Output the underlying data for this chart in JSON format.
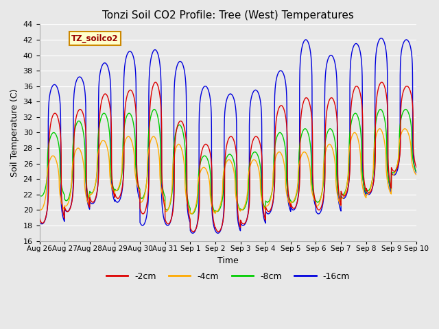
{
  "title": "Tonzi Soil CO2 Profile: Tree (West) Temperatures",
  "xlabel": "Time",
  "ylabel": "Soil Temperature (C)",
  "ylim": [
    16,
    44
  ],
  "yticks": [
    16,
    18,
    20,
    22,
    24,
    26,
    28,
    30,
    32,
    34,
    36,
    38,
    40,
    42,
    44
  ],
  "legend_label": "TZ_soilco2",
  "series_labels": [
    "-2cm",
    "-4cm",
    "-8cm",
    "-16cm"
  ],
  "series_colors": [
    "#dd0000",
    "#ffaa00",
    "#00cc00",
    "#0000dd"
  ],
  "background_color": "#e8e8e8",
  "xtick_labels": [
    "Aug 26",
    "Aug 27",
    "Aug 28",
    "Aug 29",
    "Aug 30",
    "Aug 31",
    "Sep 1",
    "Sep 2",
    "Sep 3",
    "Sep 4",
    "Sep 5",
    "Sep 6",
    "Sep 7",
    "Sep 8",
    "Sep 9",
    "Sep 10"
  ],
  "peaks_16cm": [
    36.2,
    37.2,
    39.0,
    40.5,
    40.7,
    39.2,
    36.0,
    35.0,
    35.5,
    38.0,
    42.0,
    40.0,
    41.5,
    42.2,
    42.0
  ],
  "troughs_16cm": [
    18.2,
    19.8,
    20.8,
    21.0,
    18.0,
    18.0,
    17.0,
    17.0,
    18.0,
    19.5,
    20.0,
    19.5,
    21.5,
    22.0,
    24.5
  ],
  "peaks_2cm": [
    32.5,
    33.0,
    35.0,
    35.5,
    36.5,
    31.5,
    28.5,
    29.5,
    29.5,
    33.5,
    34.5,
    34.5,
    36.0,
    36.5,
    36.0
  ],
  "troughs_2cm": [
    18.3,
    19.8,
    21.0,
    21.5,
    19.5,
    18.2,
    17.2,
    17.2,
    18.2,
    19.8,
    20.2,
    20.0,
    21.8,
    22.2,
    25.0
  ],
  "peaks_8cm": [
    30.0,
    31.5,
    32.5,
    32.5,
    33.0,
    31.0,
    27.0,
    27.2,
    27.5,
    30.0,
    30.5,
    30.5,
    32.5,
    33.0,
    33.0
  ],
  "troughs_8cm": [
    21.8,
    21.2,
    22.2,
    22.5,
    21.5,
    20.0,
    19.5,
    19.8,
    20.0,
    21.0,
    21.0,
    21.0,
    22.0,
    22.5,
    24.8
  ],
  "peaks_4cm": [
    27.0,
    28.0,
    29.0,
    29.5,
    29.5,
    28.5,
    25.5,
    26.5,
    26.5,
    27.5,
    27.5,
    28.5,
    30.0,
    30.5,
    30.5
  ],
  "troughs_4cm": [
    20.0,
    20.5,
    22.0,
    22.5,
    21.0,
    19.8,
    19.5,
    19.8,
    20.0,
    20.5,
    21.0,
    20.5,
    21.5,
    22.0,
    24.5
  ],
  "peak_sharpness_16cm": 6.0,
  "peak_sharpness_2cm": 3.5,
  "peak_sharpness_8cm": 2.5,
  "peak_sharpness_4cm": 2.0
}
